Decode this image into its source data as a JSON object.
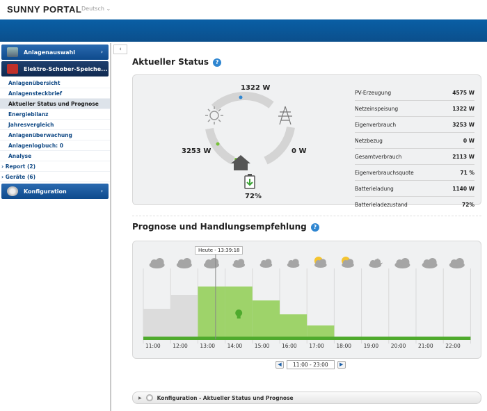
{
  "header": {
    "logo": "SUNNY PORTAL",
    "language": "Deutsch ⌄"
  },
  "sidebar": {
    "head1": "Anlagenauswahl",
    "head2": "Elektro-Schober-Speiche...",
    "items": [
      {
        "label": "Anlagenübersicht"
      },
      {
        "label": "Anlagensteckbrief"
      },
      {
        "label": "Aktueller Status und Prognose"
      },
      {
        "label": "Energiebilanz"
      },
      {
        "label": "Jahresvergleich"
      },
      {
        "label": "Anlagenüberwachung"
      },
      {
        "label": "Anlagenlogbuch: 0"
      },
      {
        "label": "Analyse"
      },
      {
        "label": "› Report (2)"
      },
      {
        "label": "› Geräte (6)"
      }
    ],
    "head3": "Konfiguration"
  },
  "status": {
    "title": "Aktueller Status",
    "top_value": "1322 W",
    "left_value": "3253 W",
    "right_value": "0 W",
    "battery_value": "72%",
    "rows": [
      {
        "label": "PV-Erzeugung",
        "value": "4575 W"
      },
      {
        "label": "Netzeinspeisung",
        "value": "1322 W"
      },
      {
        "label": "Eigenverbrauch",
        "value": "3253 W"
      },
      {
        "label": "Netzbezug",
        "value": "0 W"
      },
      {
        "label": "Gesamtverbrauch",
        "value": "2113 W"
      },
      {
        "label": "Eigenverbrauchsquote",
        "value": "71 %"
      },
      {
        "label": "Batterieladung",
        "value": "1140 W"
      },
      {
        "label": "Batterieladezustand",
        "value": "72%"
      }
    ]
  },
  "forecast": {
    "title": "Prognose und Handlungsempfehlung",
    "now_label": "Heute - 13:39:18",
    "hours": [
      "11:00",
      "12:00",
      "13:00",
      "14:00",
      "15:00",
      "16:00",
      "17:00",
      "18:00",
      "19:00",
      "20:00",
      "21:00",
      "22:00"
    ],
    "weather": [
      "cloud",
      "cloud",
      "cloud",
      "cloud-small",
      "cloud-small",
      "cloud-small",
      "sun-cloud",
      "sun-cloud",
      "moon-cloud",
      "cloud",
      "cloud",
      "cloud"
    ],
    "levels": [
      0.22,
      0.32,
      0.38,
      0.38,
      0.28,
      0.18,
      0.1,
      0.02,
      0.0,
      0.0,
      0.0,
      0.0
    ],
    "recommended": [
      false,
      false,
      true,
      true,
      true,
      true,
      true,
      false,
      false,
      false,
      false,
      false
    ],
    "range": "11:00 - 23:00"
  },
  "config_bar": {
    "label": "Konfiguration - Aktueller Status und Prognose"
  },
  "colors": {
    "brand": "#0b4f8c",
    "green": "#78c13a",
    "grey_bar": "#dcdcdc"
  }
}
